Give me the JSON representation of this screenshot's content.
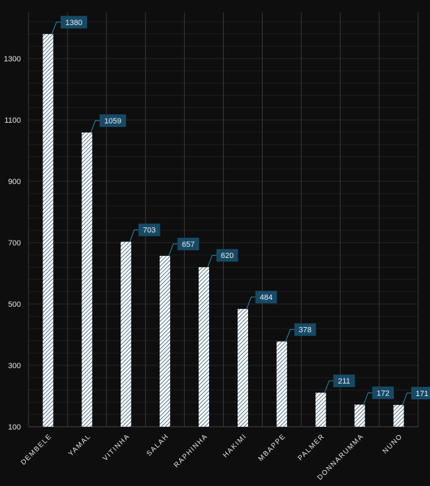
{
  "chart_data": {
    "type": "bar",
    "title": "",
    "xlabel": "",
    "ylabel": "",
    "categories": [
      "DEMBELE",
      "YAMAL",
      "VITINHA",
      "SALAH",
      "RAPHINHA",
      "HAKIMI",
      "MBAPPE",
      "PALMER",
      "DONNARUMMA",
      "NUNO"
    ],
    "values": [
      1380,
      1059,
      703,
      657,
      620,
      484,
      378,
      211,
      172,
      171
    ],
    "ylim": [
      100,
      1450
    ],
    "yticks": [
      100,
      300,
      500,
      700,
      900,
      1100,
      1300
    ],
    "grid": true,
    "legend": "none",
    "colors": {
      "background": "#0e0e0e",
      "bar": "#ffffff",
      "hatch": "#1f4e6e",
      "label_bg": "#164a66",
      "leader": "#2a8ab0",
      "grid": "#262626",
      "vgrid": "#3a3a3a"
    }
  }
}
